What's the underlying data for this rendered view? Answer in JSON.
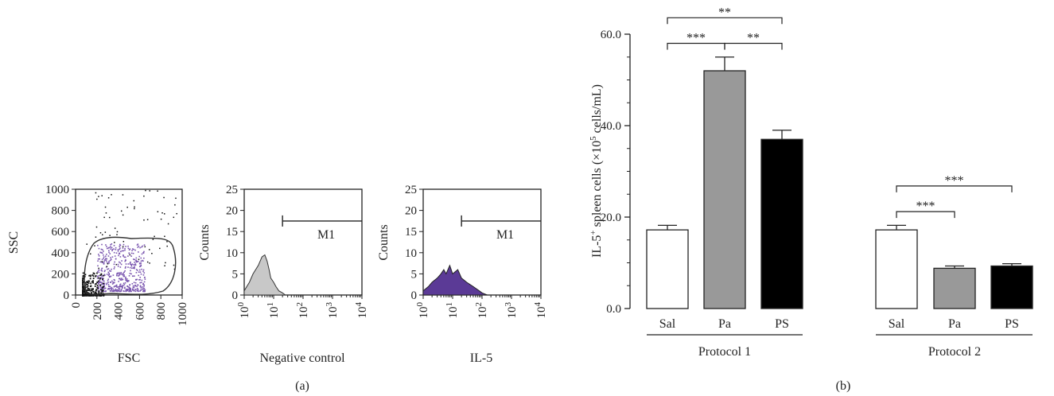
{
  "panel_labels": [
    "(a)",
    "(b)"
  ],
  "chart_data": [
    {
      "type": "scatter",
      "panel": "(a)",
      "xlabel": "FSC",
      "ylabel": "SSC",
      "xlim": [
        0,
        1000
      ],
      "ylim": [
        0,
        1000
      ],
      "xticks": [
        "0",
        "200",
        "400",
        "600",
        "800",
        "1000"
      ],
      "yticks": [
        "0",
        "200",
        "400",
        "600",
        "800",
        "1000"
      ],
      "grid": false,
      "colors": {
        "gated": "#7b57b0",
        "ungated": "#111111"
      }
    },
    {
      "type": "area",
      "panel": "(a)",
      "xlabel": "Negative control",
      "ylabel": "Counts",
      "xscale": "log",
      "ylim": [
        0,
        25
      ],
      "yticks": [
        "0",
        "5",
        "10",
        "15",
        "20",
        "25"
      ],
      "xticks": [
        "10",
        "10",
        "10",
        "10",
        "10"
      ],
      "xtick_exp": [
        "0",
        "1",
        "2",
        "3",
        "4"
      ],
      "marker": {
        "label": "M1",
        "from": 20,
        "to": 10000
      },
      "fill": "#c8c8c8",
      "x": [
        1,
        1.5,
        2,
        3,
        4,
        5,
        6,
        7,
        8,
        10,
        12,
        15,
        20,
        25
      ],
      "y": [
        1,
        3,
        5,
        7,
        9,
        9.5,
        8,
        6,
        4,
        3,
        2,
        1,
        0.5,
        0
      ]
    },
    {
      "type": "area",
      "panel": "(a)",
      "xlabel": "IL-5",
      "ylabel": "Counts",
      "xscale": "log",
      "ylim": [
        0,
        25
      ],
      "yticks": [
        "0",
        "5",
        "10",
        "15",
        "20",
        "25"
      ],
      "xticks": [
        "10",
        "10",
        "10",
        "10",
        "10"
      ],
      "xtick_exp": [
        "0",
        "1",
        "2",
        "3",
        "4"
      ],
      "marker": {
        "label": "M1",
        "from": 20,
        "to": 10000
      },
      "fill": "#5b3a96",
      "x": [
        1,
        1.5,
        2,
        3,
        4,
        5,
        6,
        8,
        10,
        15,
        20,
        30,
        50,
        80,
        100,
        150
      ],
      "y": [
        1,
        2,
        3,
        4,
        5,
        6,
        5,
        7,
        5,
        6,
        4,
        3,
        2,
        1,
        0.5,
        0
      ]
    },
    {
      "type": "bar",
      "panel": "(b)",
      "ylabel_parts": [
        "IL-5",
        "+",
        " spleen cells (×10",
        "5",
        " cells/mL)"
      ],
      "ylim": [
        0,
        60
      ],
      "yticks": [
        "0.0",
        "20.0",
        "40.0",
        "60.0"
      ],
      "yticks_values": [
        0,
        20,
        40,
        60
      ],
      "groups": [
        {
          "name": "Protocol 1",
          "categories": [
            "Sal",
            "Pa",
            "PS"
          ],
          "values": [
            17.2,
            52.0,
            37.0
          ],
          "errors": [
            1.0,
            3.0,
            2.0
          ],
          "colors": [
            "#ffffff",
            "#999999",
            "#000000"
          ],
          "significance": [
            {
              "pair": [
                0,
                1
              ],
              "label": "***"
            },
            {
              "pair": [
                1,
                2
              ],
              "label": "**"
            },
            {
              "pair": [
                0,
                2
              ],
              "label": "**"
            }
          ]
        },
        {
          "name": "Protocol 2",
          "categories": [
            "Sal",
            "Pa",
            "PS"
          ],
          "values": [
            17.2,
            8.8,
            9.3
          ],
          "errors": [
            1.0,
            0.5,
            0.5
          ],
          "colors": [
            "#ffffff",
            "#999999",
            "#000000"
          ],
          "significance": [
            {
              "pair": [
                0,
                1
              ],
              "label": "***"
            },
            {
              "pair": [
                0,
                2
              ],
              "label": "***"
            }
          ]
        }
      ]
    }
  ]
}
